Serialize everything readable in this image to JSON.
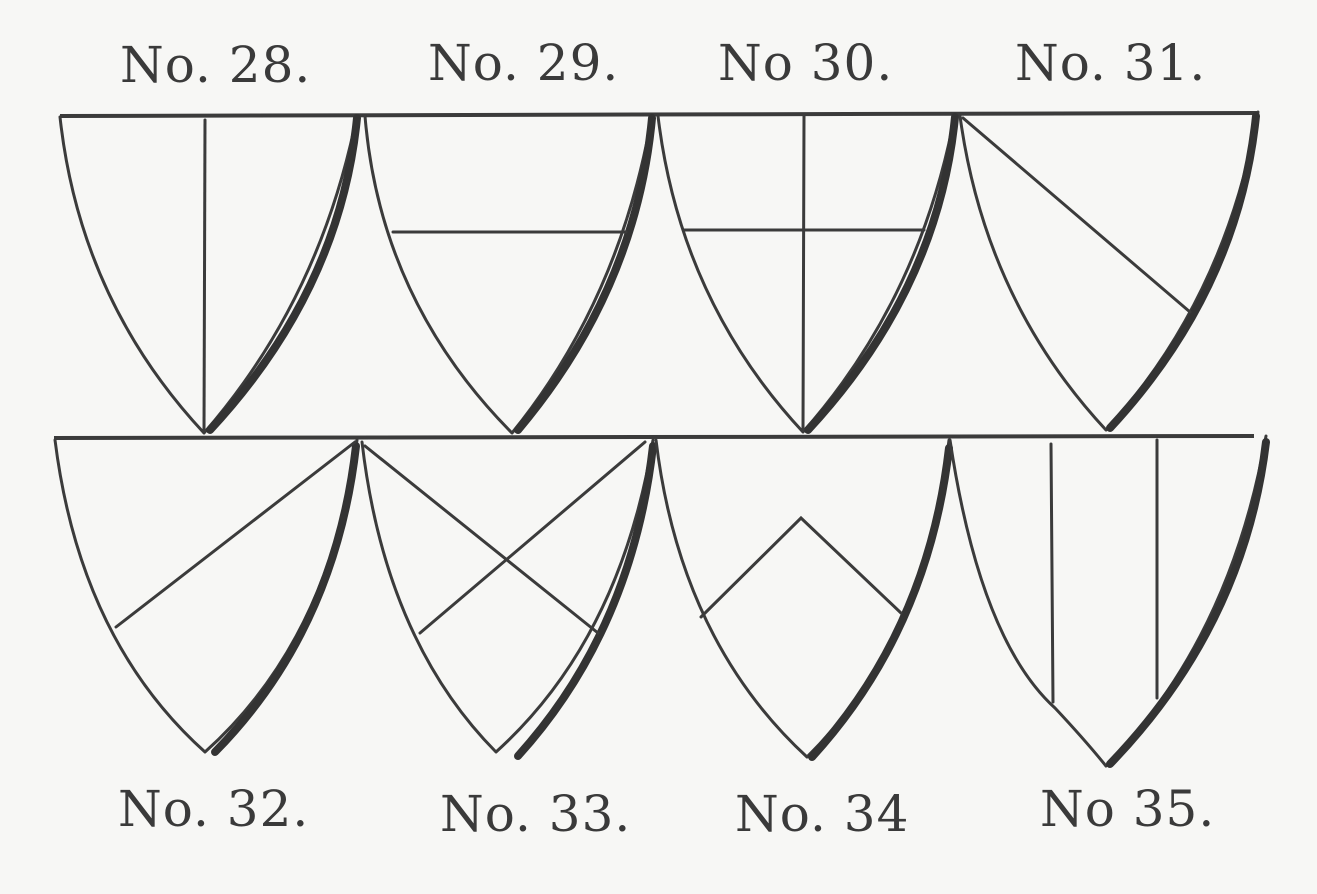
{
  "labels": {
    "no28": "No. 28.",
    "no29": "No. 29.",
    "no30": "No 30.",
    "no31": "No. 31.",
    "no32": "No. 32.",
    "no33": "No. 33.",
    "no34": "No. 34",
    "no35": "No 35."
  }
}
